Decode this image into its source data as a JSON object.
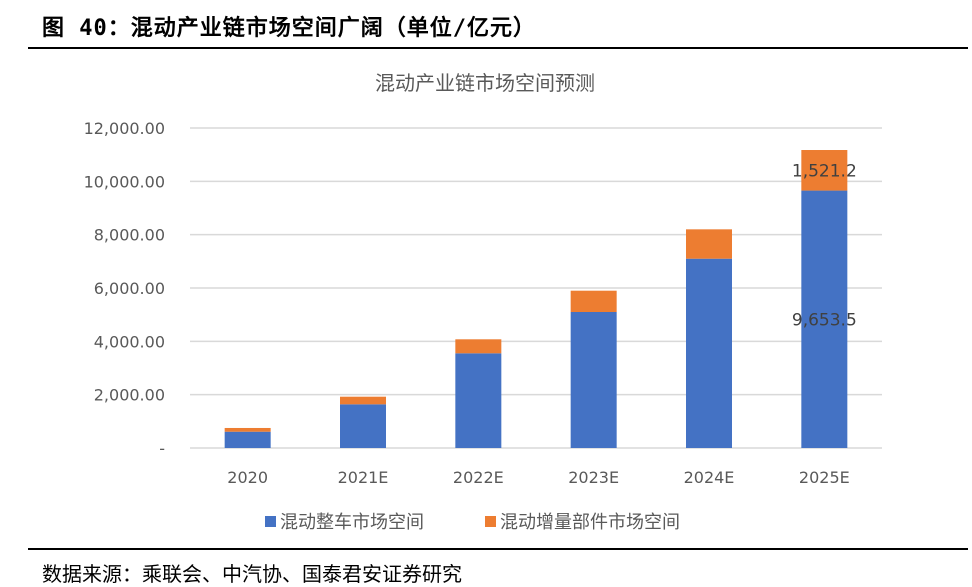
{
  "figure_title": "图 40：混动产业链市场空间广阔（单位/亿元）",
  "source": "数据来源：乘联会、中汽协、国泰君安证券研究",
  "colors": {
    "series1": "#4472C4",
    "series2": "#ED7D31",
    "grid": "#D9D9D9",
    "text": "#595959"
  },
  "chart_data": {
    "type": "bar",
    "stacked": true,
    "title": "混动产业链市场空间预测",
    "xlabel": "",
    "ylabel": "",
    "categories": [
      "2020",
      "2021E",
      "2022E",
      "2023E",
      "2024E",
      "2025E"
    ],
    "series": [
      {
        "name": "混动整车市场空间",
        "values": [
          611,
          1638,
          3551,
          5100,
          7099,
          9653.5
        ]
      },
      {
        "name": "混动增量部件市场空间",
        "values": [
          140,
          286,
          525,
          799,
          1101,
          1521.2
        ]
      }
    ],
    "data_labels": [
      {
        "category": "2025E",
        "series": 0,
        "text": "9,653.5"
      },
      {
        "category": "2025E",
        "series": 1,
        "text": "1,521.2"
      }
    ],
    "yticks": [
      "-",
      "2,000.00",
      "4,000.00",
      "6,000.00",
      "8,000.00",
      "10,000.00",
      "12,000.00"
    ],
    "ylim": [
      0,
      12000
    ],
    "grid": true,
    "legend": "bottom"
  }
}
